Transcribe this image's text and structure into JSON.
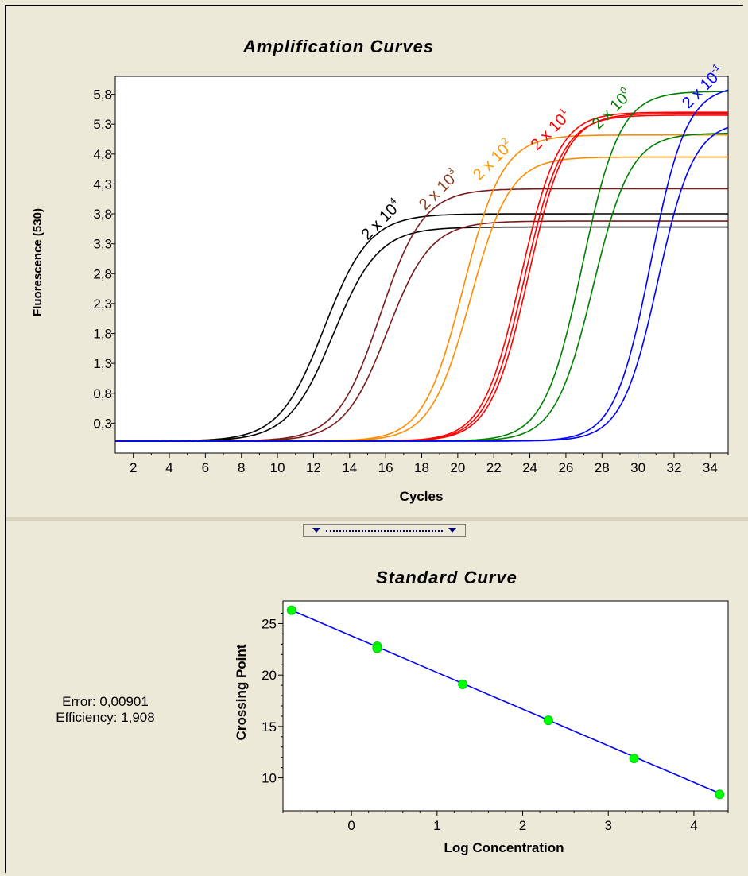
{
  "amplification": {
    "title": "Amplification Curves",
    "xlabel": "Cycles",
    "ylabel": "Fluorescence (530)",
    "xticks": [
      "2",
      "4",
      "6",
      "8",
      "10",
      "12",
      "14",
      "16",
      "18",
      "20",
      "22",
      "24",
      "26",
      "28",
      "30",
      "32",
      "34"
    ],
    "yticks": [
      "0,3",
      "0,8",
      "1,3",
      "1,8",
      "2,3",
      "2,8",
      "3,3",
      "3,8",
      "4,3",
      "4,8",
      "5,3",
      "5,8"
    ]
  },
  "standard": {
    "title": "Standard Curve",
    "xlabel": "Log Concentration",
    "ylabel": "Crossing Point",
    "xticks": [
      "0",
      "1",
      "2",
      "3",
      "4"
    ],
    "yticks": [
      "10",
      "15",
      "20",
      "25"
    ]
  },
  "stats": {
    "error": "Error: 0,00901",
    "efficiency": "Efficiency: 1,908"
  },
  "chart_data": [
    {
      "type": "line",
      "title": "Amplification Curves",
      "xlabel": "Cycles",
      "ylabel": "Fluorescence (530)",
      "xlim": [
        1,
        35
      ],
      "ylim": [
        -0.2,
        6.1
      ],
      "baseline": 0.0,
      "series": [
        {
          "name": "2 x 10^4",
          "label_base": "2 x 10",
          "label_exp": "4",
          "color": "#000000",
          "label_color": "#000000",
          "label_x": 15,
          "label_y": 3.35,
          "curves": [
            {
              "plateau": 3.8,
              "midpoint": 12.6,
              "slope": 1.25
            },
            {
              "plateau": 3.58,
              "midpoint": 13.1,
              "slope": 1.25
            }
          ]
        },
        {
          "name": "2 x 10^3",
          "label_base": "2 x 10",
          "label_exp": "3",
          "color": "#7a1c1c",
          "label_color": "#8b3a1a",
          "label_x": 18.2,
          "label_y": 3.85,
          "curves": [
            {
              "plateau": 4.22,
              "midpoint": 15.7,
              "slope": 1.2
            },
            {
              "plateau": 3.68,
              "midpoint": 16.1,
              "slope": 1.2
            }
          ]
        },
        {
          "name": "2 x 10^2",
          "label_base": "2 x 10",
          "label_exp": "2",
          "color": "#ff8c00",
          "label_color": "#ff9900",
          "label_x": 21.2,
          "label_y": 4.35,
          "curves": [
            {
              "plateau": 5.12,
              "midpoint": 20.3,
              "slope": 1.1
            },
            {
              "plateau": 4.75,
              "midpoint": 20.7,
              "slope": 1.1
            }
          ]
        },
        {
          "name": "2 x 10^1",
          "label_base": "2 x 10",
          "label_exp": "1",
          "color": "#ff0000",
          "label_color": "#ff0000",
          "label_x": 24.4,
          "label_y": 4.85,
          "curves": [
            {
              "plateau": 5.5,
              "midpoint": 23.5,
              "slope": 1.05
            },
            {
              "plateau": 5.45,
              "midpoint": 23.7,
              "slope": 1.05
            },
            {
              "plateau": 5.48,
              "midpoint": 23.9,
              "slope": 1.05
            }
          ]
        },
        {
          "name": "2 x 10^0",
          "label_base": "2 x 10",
          "label_exp": "0",
          "color": "#008000",
          "label_color": "#008000",
          "label_x": 27.8,
          "label_y": 5.2,
          "curves": [
            {
              "plateau": 5.85,
              "midpoint": 26.9,
              "slope": 1.05
            },
            {
              "plateau": 5.15,
              "midpoint": 27.5,
              "slope": 1.05
            }
          ]
        },
        {
          "name": "2 x 10^-1",
          "label_base": "2 x 10",
          "label_exp": "-1",
          "color": "#0000ff",
          "label_color": "#0000ff",
          "label_x": 32.8,
          "label_y": 5.55,
          "curves": [
            {
              "plateau": 5.95,
              "midpoint": 30.7,
              "slope": 1.0
            },
            {
              "plateau": 5.35,
              "midpoint": 31.1,
              "slope": 1.0
            }
          ]
        }
      ]
    },
    {
      "type": "scatter",
      "title": "Standard Curve",
      "xlabel": "Log Concentration",
      "ylabel": "Crossing Point",
      "xlim": [
        -0.8,
        4.4
      ],
      "ylim": [
        6.8,
        27.2
      ],
      "fit_line": {
        "x": [
          -0.7,
          4.3
        ],
        "y": [
          26.3,
          8.5
        ],
        "color": "#0000ff"
      },
      "point_color": "#00ff00",
      "points": [
        {
          "x": -0.7,
          "y": 26.3
        },
        {
          "x": 0.3,
          "y": 22.8
        },
        {
          "x": 0.3,
          "y": 22.6
        },
        {
          "x": 1.3,
          "y": 19.1
        },
        {
          "x": 2.3,
          "y": 15.6
        },
        {
          "x": 3.3,
          "y": 11.9
        },
        {
          "x": 4.3,
          "y": 8.4
        }
      ]
    }
  ]
}
